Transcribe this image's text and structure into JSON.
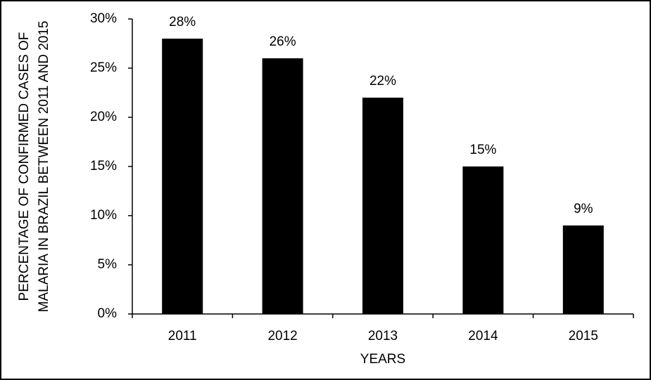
{
  "chart_data": {
    "type": "bar",
    "y_label": "PERCENTAGE OF CONFIRMED CASES OF MALARIA IN BRAZIL BETWEEN 2011 AND 2015",
    "x_label": "YEARS",
    "categories": [
      "2011",
      "2012",
      "2013",
      "2014",
      "2015"
    ],
    "values": [
      28,
      26,
      22,
      15,
      9
    ],
    "value_labels": [
      "28%",
      "26%",
      "22%",
      "15%",
      "9%"
    ],
    "color": "#000000",
    "ylim": [
      0,
      30
    ],
    "yticks": [
      {
        "value": 0,
        "label": "0%"
      },
      {
        "value": 5,
        "label": "5%"
      },
      {
        "value": 10,
        "label": "10%"
      },
      {
        "value": 15,
        "label": "15%"
      },
      {
        "value": 20,
        "label": "20%"
      },
      {
        "value": 25,
        "label": "25%"
      },
      {
        "value": 30,
        "label": "30%"
      }
    ],
    "grid": false
  }
}
